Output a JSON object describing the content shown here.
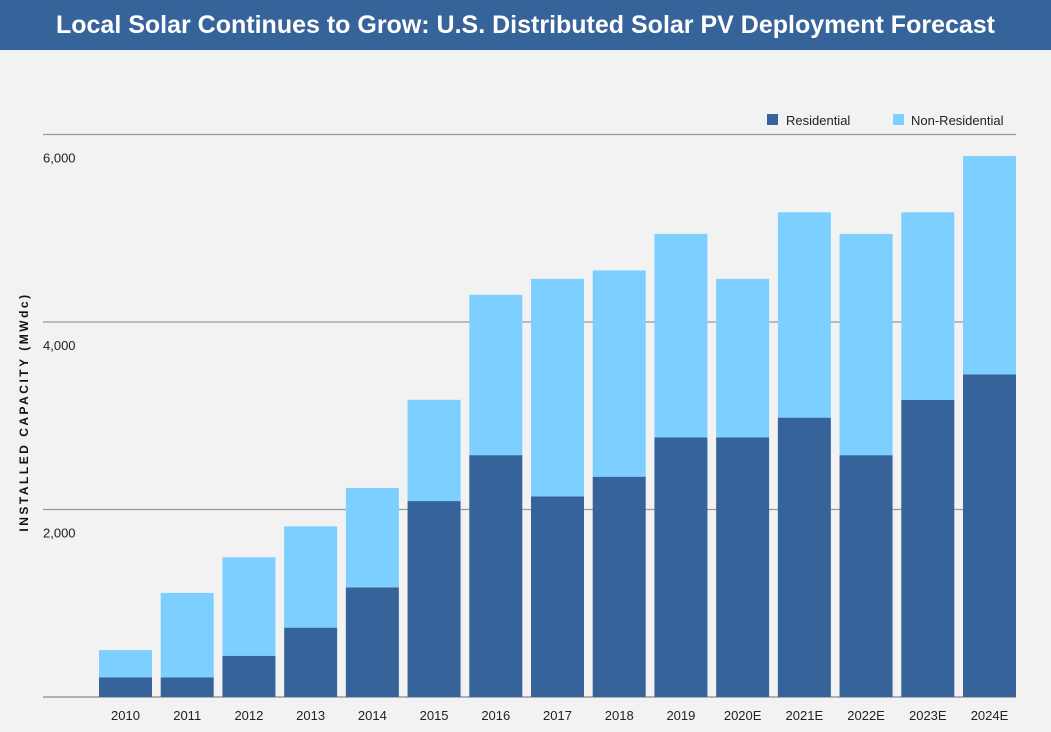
{
  "header": {
    "title": "Local Solar Continues to Grow: U.S. Distributed Solar PV Deployment Forecast"
  },
  "chart_data": {
    "type": "bar",
    "stacked": true,
    "title": "Local Solar Continues to Grow: U.S. Distributed Solar PV Deployment Forecast",
    "xlabel": "",
    "ylabel": "INSTALLED CAPACITY (MWdc)",
    "ylim": [
      0,
      6000
    ],
    "yticks": [
      0,
      2000,
      4000,
      6000
    ],
    "ytick_labels": [
      "2,000",
      "4,000",
      "6,000"
    ],
    "grid": true,
    "legend": "top-right",
    "categories": [
      "2010",
      "2011",
      "2012",
      "2013",
      "2014",
      "2015",
      "2016",
      "2017",
      "2018",
      "2019",
      "2020E",
      "2021E",
      "2022E",
      "2023E",
      "2024E"
    ],
    "series": [
      {
        "name": "Residential",
        "color": "#36639a",
        "values": [
          210,
          210,
          440,
          740,
          1170,
          2090,
          2580,
          2140,
          2350,
          2770,
          2770,
          2980,
          2580,
          3170,
          3440
        ]
      },
      {
        "name": "Non-Residential",
        "color": "#7dcfff",
        "values": [
          290,
          900,
          1050,
          1080,
          1060,
          1080,
          1710,
          2320,
          2200,
          2170,
          1690,
          2190,
          2360,
          2000,
          2330
        ]
      }
    ]
  }
}
